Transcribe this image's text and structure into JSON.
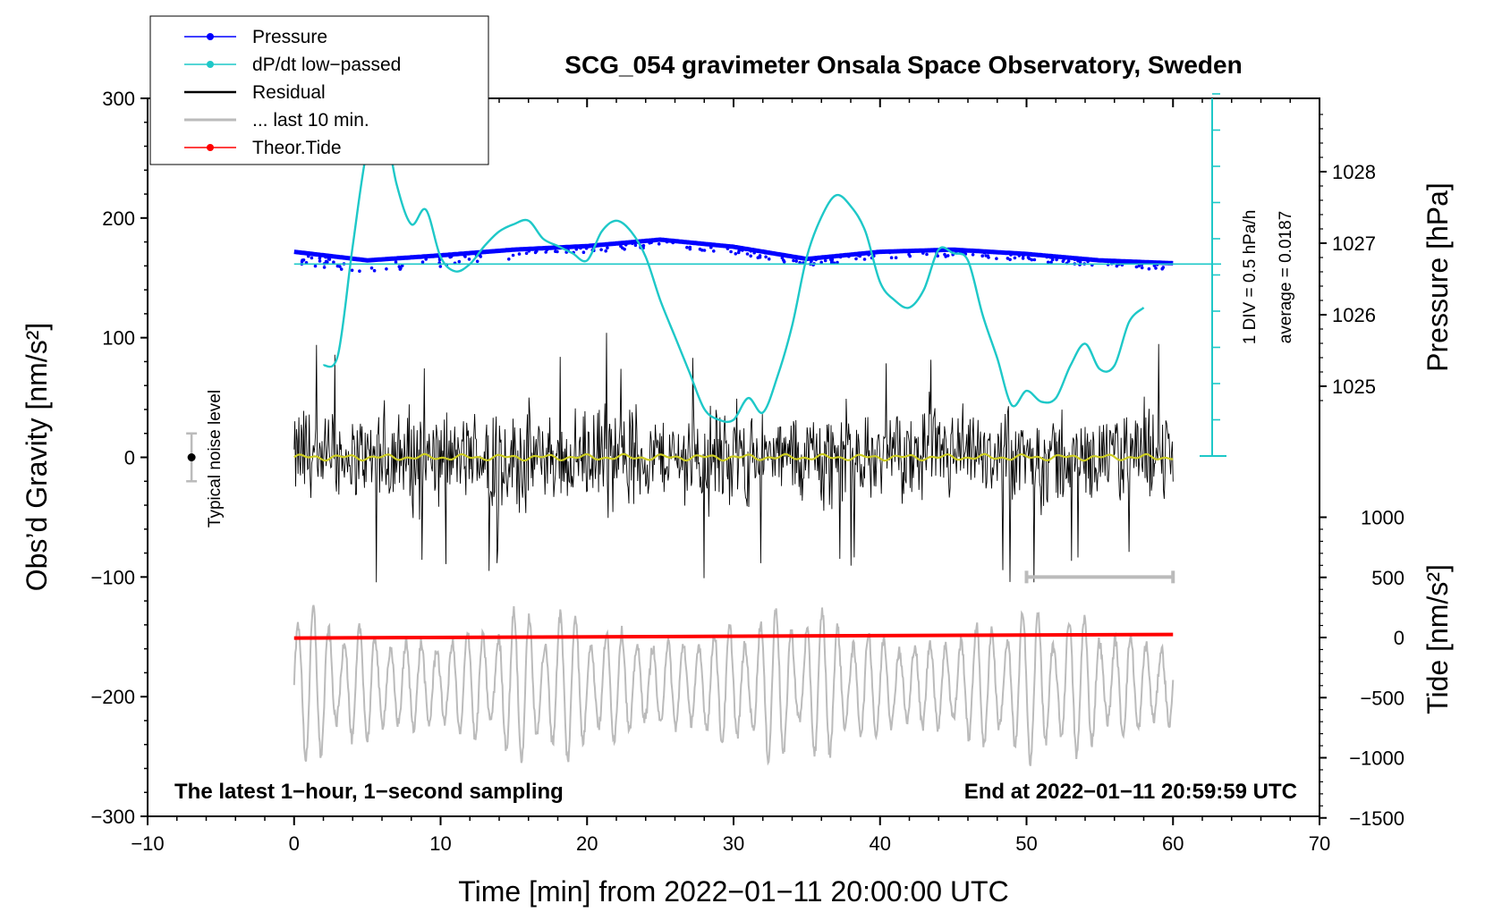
{
  "chart_data": {
    "type": "line",
    "title": "SCG_054 gravimeter Onsala Space Observatory, Sweden",
    "xlabel": "Time [min] from 2022−01−11 20:00:00 UTC",
    "ylabel_left": "Obs’d Gravity [nm/s²]",
    "ylabel_right_pressure": "Pressure [hPa]",
    "ylabel_right_tide": "Tide [nm/s²]",
    "xlim": [
      -10,
      70
    ],
    "ylim": [
      -300,
      300
    ],
    "x_ticks": [
      "−10",
      "0",
      "10",
      "20",
      "30",
      "40",
      "50",
      "60",
      "70"
    ],
    "y_ticks": [
      "300",
      "200",
      "100",
      "0",
      "−100",
      "−200",
      "−300"
    ],
    "pressure_ticks": [
      "1028",
      "1027",
      "1026",
      "1025"
    ],
    "tide_ticks": [
      "1000",
      "500",
      "0",
      "−500",
      "−1000",
      "−1500"
    ],
    "legend": [
      {
        "label": "Pressure",
        "color": "#0000ff",
        "marker": true
      },
      {
        "label": "dP/dt low−passed",
        "color": "#1ec8c8",
        "marker": true
      },
      {
        "label": "Residual",
        "color": "#000000",
        "marker": false
      },
      {
        "label": "... last 10 min.",
        "color": "#bbbbbb",
        "marker": false
      },
      {
        "label": "Theor.Tide",
        "color": "#ff0000",
        "marker": true
      }
    ],
    "noise_label": "Typical noise level",
    "noise_level": 20,
    "dpdt_scale_label": "1 DIV = 0.5 hPa/h",
    "dpdt_average_label": "average = 0.0187",
    "note_left": "The latest 1−hour, 1−second sampling",
    "note_right": "End at 2022−01−11 20:59:59 UTC",
    "last10_range": [
      50,
      60
    ],
    "series": [
      {
        "name": "Pressure",
        "unit": "hPa",
        "x": [
          0,
          5,
          10,
          15,
          20,
          25,
          30,
          35,
          40,
          45,
          50,
          55,
          60
        ],
        "values": [
          1026.88,
          1026.76,
          1026.83,
          1026.91,
          1026.96,
          1027.05,
          1026.95,
          1026.78,
          1026.88,
          1026.91,
          1026.85,
          1026.76,
          1026.72
        ]
      },
      {
        "name": "dP/dt low−passed",
        "unit": "divisions",
        "x": [
          2,
          3,
          4,
          5,
          6,
          7,
          8,
          9,
          10,
          11,
          12,
          13,
          14,
          15,
          16,
          17,
          18,
          19,
          20,
          21,
          22,
          23,
          24,
          25,
          26,
          27,
          28,
          29,
          30,
          31,
          32,
          33,
          34,
          35,
          36,
          37,
          38,
          39,
          40,
          41,
          42,
          43,
          44,
          45,
          46,
          47,
          48,
          49,
          50,
          51,
          52,
          53,
          54,
          55,
          56,
          57,
          58
        ],
        "values": [
          2.5,
          2.8,
          5.8,
          8.5,
          9.4,
          7.5,
          6.4,
          6.8,
          5.5,
          5.1,
          5.3,
          5.8,
          6.2,
          6.4,
          6.5,
          6.0,
          5.8,
          5.6,
          5.4,
          6.2,
          6.5,
          6.2,
          5.5,
          4.3,
          3.3,
          2.3,
          1.3,
          1.0,
          1.0,
          1.6,
          1.2,
          2.2,
          3.6,
          5.5,
          6.6,
          7.2,
          6.9,
          6.2,
          4.8,
          4.3,
          4.1,
          4.6,
          5.7,
          5.6,
          5.4,
          3.9,
          2.7,
          1.4,
          1.8,
          1.5,
          1.6,
          2.5,
          3.1,
          2.4,
          2.5,
          3.7,
          4.1
        ]
      },
      {
        "name": "Residual",
        "unit": "nm/s²",
        "x": [
          0,
          60
        ],
        "values": [
          0,
          0
        ],
        "peak_amplitude": 105,
        "typical_amplitude": 45
      },
      {
        "name": "... last 10 min.",
        "unit": "nm/s²",
        "x": [
          0,
          60
        ],
        "values": [
          -190,
          -190
        ],
        "typical_amplitude": 55
      },
      {
        "name": "Theor.Tide",
        "unit": "nm/s²",
        "x": [
          0,
          60
        ],
        "values": [
          -151,
          -148
        ]
      }
    ]
  }
}
